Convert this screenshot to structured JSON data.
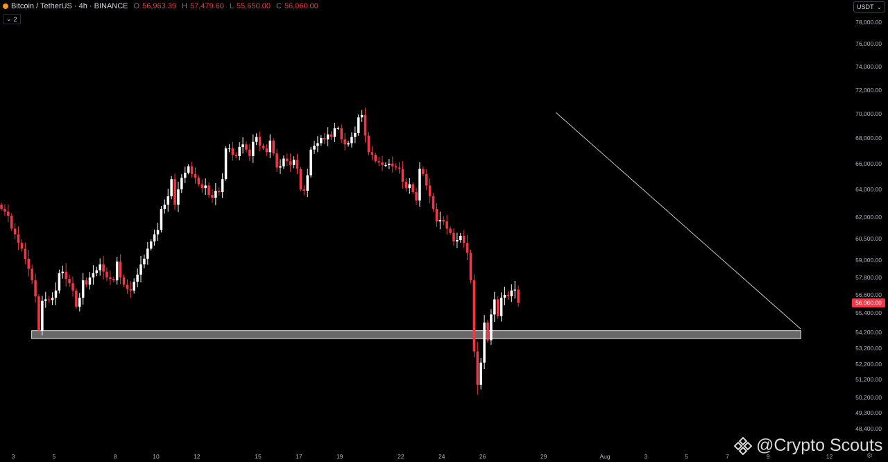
{
  "header": {
    "symbol": "Bitcoin / TetherUS · 4h · BINANCE",
    "o_label": "O",
    "o_value": "56,963.39",
    "h_label": "H",
    "h_value": "57,479.60",
    "l_label": "L",
    "l_value": "55,650.00",
    "c_label": "C",
    "c_value": "56,060.00",
    "indicator_count": "2"
  },
  "currency": "USDT",
  "watermark": "@Crypto Scouts",
  "colors": {
    "up": "#ffffff",
    "down": "#f23645",
    "background": "#000000",
    "zone": "#9a9a9a",
    "trendline": "#c8c8c8",
    "price_tag": "#f23645"
  },
  "chart_data": {
    "type": "candlestick",
    "y_ticks": [
      {
        "v": 78000,
        "label": "78,000.00"
      },
      {
        "v": 76000,
        "label": "76,000.00"
      },
      {
        "v": 74000,
        "label": "74,000.00"
      },
      {
        "v": 72000,
        "label": "72,000.00"
      },
      {
        "v": 70000,
        "label": "70,000.00"
      },
      {
        "v": 68000,
        "label": "68,000.00"
      },
      {
        "v": 66000,
        "label": "66,000.00"
      },
      {
        "v": 64000,
        "label": "64,000.00"
      },
      {
        "v": 62000,
        "label": "62,000.00"
      },
      {
        "v": 60500,
        "label": "60,500.00"
      },
      {
        "v": 59000,
        "label": "59,000.00"
      },
      {
        "v": 57800,
        "label": "57,800.00"
      },
      {
        "v": 56600,
        "label": "56,600.00"
      },
      {
        "v": 55400,
        "label": "55,400.00"
      },
      {
        "v": 54200,
        "label": "54,200.00"
      },
      {
        "v": 53200,
        "label": "53,200.00"
      },
      {
        "v": 52200,
        "label": "52,200.00"
      },
      {
        "v": 51200,
        "label": "51,200.00"
      },
      {
        "v": 50200,
        "label": "50,200.00"
      },
      {
        "v": 49300,
        "label": "49,300.00"
      },
      {
        "v": 48400,
        "label": "48,400.00"
      }
    ],
    "x_ticks": [
      {
        "d": 2,
        "label": "3"
      },
      {
        "d": 4,
        "label": "5"
      },
      {
        "d": 7,
        "label": "8"
      },
      {
        "d": 9,
        "label": "10"
      },
      {
        "d": 11,
        "label": "12"
      },
      {
        "d": 14,
        "label": "15"
      },
      {
        "d": 16,
        "label": "17"
      },
      {
        "d": 18,
        "label": "19"
      },
      {
        "d": 21,
        "label": "22"
      },
      {
        "d": 23,
        "label": "24"
      },
      {
        "d": 25,
        "label": "26"
      },
      {
        "d": 28,
        "label": "29"
      },
      {
        "d": 31,
        "label": "Aug"
      },
      {
        "d": 33,
        "label": "3"
      },
      {
        "d": 35,
        "label": "5"
      },
      {
        "d": 37,
        "label": "7"
      },
      {
        "d": 39,
        "label": "9"
      },
      {
        "d": 42,
        "label": "12"
      }
    ],
    "x_range_days": [
      1.35,
      42.9
    ],
    "last_price": 56060,
    "last_price_label": "56,060.00",
    "support_zone": {
      "from_day": 2.9,
      "to_day": 40.6,
      "low": 53800,
      "high": 54300
    },
    "trendline": {
      "start_day": 28.6,
      "start_price": 70100,
      "end_day": 40.6,
      "end_price": 54400
    },
    "closes": [
      62600,
      62400,
      62100,
      61200,
      60800,
      60200,
      59800,
      59100,
      58400,
      57600,
      56500,
      54300,
      56200,
      56300,
      56250,
      56400,
      56900,
      58100,
      58200,
      57700,
      57400,
      56900,
      55800,
      56400,
      57600,
      57300,
      57800,
      58100,
      58300,
      58700,
      58200,
      57800,
      57700,
      57600,
      58900,
      57800,
      57300,
      57000,
      56900,
      57500,
      58000,
      58700,
      59100,
      59800,
      60300,
      60800,
      61100,
      62600,
      62900,
      63500,
      64800,
      62900,
      64000,
      64900,
      65300,
      65800,
      65200,
      64900,
      64400,
      64100,
      64300,
      63600,
      63400,
      63900,
      63800,
      64800,
      67200,
      67200,
      66700,
      66600,
      67300,
      67500,
      67100,
      66600,
      67700,
      68100,
      67400,
      67200,
      66900,
      67800,
      66800,
      65700,
      65800,
      66400,
      66200,
      65900,
      66300,
      65600,
      64000,
      63900,
      65100,
      67100,
      67400,
      67600,
      68000,
      67900,
      68300,
      68100,
      68800,
      68800,
      67900,
      67500,
      67600,
      68100,
      68400,
      69700,
      69900,
      68200,
      66900,
      66700,
      66200,
      66100,
      65900,
      65900,
      66000,
      65800,
      65700,
      65600,
      64600,
      64100,
      64400,
      63800,
      63200,
      65600,
      65200,
      64300,
      63500,
      62600,
      61700,
      61800,
      61700,
      61200,
      60900,
      60300,
      60400,
      60700,
      60200,
      59500,
      57600,
      53000,
      50900,
      52300,
      54800,
      53700,
      55300,
      56300,
      55200,
      56400,
      56600,
      56500,
      56900,
      56960,
      56060
    ]
  }
}
